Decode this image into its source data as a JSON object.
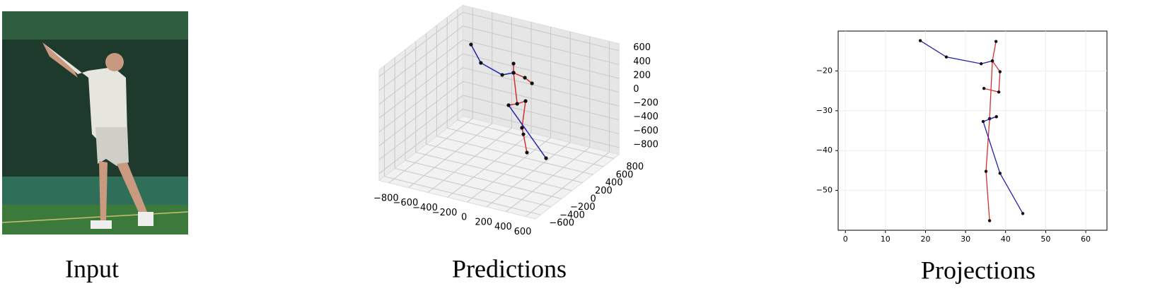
{
  "input": {
    "caption": "Input"
  },
  "chart_data": [
    {
      "type": "line3d",
      "caption": "Predictions",
      "xlim": [
        -900,
        700
      ],
      "ylim": [
        -700,
        900
      ],
      "zlim": [
        -900,
        700
      ],
      "xticks": [
        {
          "value": -800,
          "label": "−800"
        },
        {
          "value": -600,
          "label": "−600"
        },
        {
          "value": -400,
          "label": "−400"
        },
        {
          "value": -200,
          "label": "−200"
        },
        0,
        200,
        400,
        600
      ],
      "yticks": [
        {
          "value": -600,
          "label": "−600"
        },
        {
          "value": -400,
          "label": "−400"
        },
        {
          "value": -200,
          "label": "−200"
        },
        0,
        200,
        400,
        600,
        800
      ],
      "zticks": [
        {
          "value": -800,
          "label": "−800"
        },
        {
          "value": -600,
          "label": "−600"
        },
        {
          "value": -400,
          "label": "−400"
        },
        {
          "value": -200,
          "label": "−200"
        },
        0,
        200,
        400,
        600
      ],
      "grid": true,
      "series": [
        {
          "color": "#2222b0",
          "x": [
            -495,
            -394,
            -175,
            -59
          ],
          "y": [
            300,
            300,
            300,
            300
          ],
          "z": [
            623,
            393,
            295,
            366
          ]
        },
        {
          "color": "#d03030",
          "x": [
            -59,
            -59
          ],
          "y": [
            300,
            300
          ],
          "z": [
            499,
            366
          ]
        },
        {
          "color": "#d03030",
          "x": [
            -59,
            57,
            130
          ],
          "y": [
            300,
            300,
            300
          ],
          "z": [
            366,
            335,
            279
          ]
        },
        {
          "color": "#d03030",
          "x": [
            -59,
            -22
          ],
          "y": [
            300,
            300
          ],
          "z": [
            366,
            -69
          ]
        },
        {
          "color": "#d03030",
          "x": [
            -110,
            -22,
            64
          ],
          "y": [
            300,
            300,
            300
          ],
          "z": [
            -120,
            -69,
            0
          ]
        },
        {
          "color": "#d03030",
          "x": [
            64,
            27,
            42,
            78
          ],
          "y": [
            300,
            300,
            300,
            300
          ],
          "z": [
            0,
            -400,
            -487,
            -739
          ]
        },
        {
          "color": "#2222b0",
          "x": [
            -110,
            274
          ],
          "y": [
            300,
            300
          ],
          "z": [
            -120,
            -753
          ]
        }
      ]
    },
    {
      "type": "line",
      "caption": "Projections",
      "xlim": [
        -1.8,
        65.3
      ],
      "ylim": [
        -60,
        -10
      ],
      "xticks": [
        0,
        10,
        20,
        30,
        40,
        50,
        60
      ],
      "yticks": [
        {
          "value": -20,
          "label": "−20"
        },
        {
          "value": -30,
          "label": "−30"
        },
        {
          "value": -40,
          "label": "−40"
        },
        {
          "value": -50,
          "label": "−50"
        }
      ],
      "grid": true,
      "series": [
        {
          "color": "#2222b0",
          "x": [
            18.7,
            25.2,
            33.9,
            36.7
          ],
          "y": [
            -12.4,
            -16.5,
            -18.2,
            -17.5
          ]
        },
        {
          "color": "#d03030",
          "x": [
            37.6,
            36.7,
            36,
            35.1,
            36
          ],
          "y": [
            -12.6,
            -17.5,
            -32,
            -45.2,
            -57.6
          ]
        },
        {
          "color": "#d03030",
          "x": [
            36.7,
            38.6,
            38.3,
            34.6
          ],
          "y": [
            -17.5,
            -20.2,
            -25.3,
            -24.4
          ]
        },
        {
          "color": "#d03030",
          "x": [
            36,
            37.7
          ],
          "y": [
            -32,
            -31.5
          ]
        },
        {
          "color": "#2222b0",
          "x": [
            37.7,
            34.4,
            38.6,
            44.3
          ],
          "y": [
            -31.5,
            -32.7,
            -45.7,
            -55.8
          ]
        }
      ]
    }
  ]
}
